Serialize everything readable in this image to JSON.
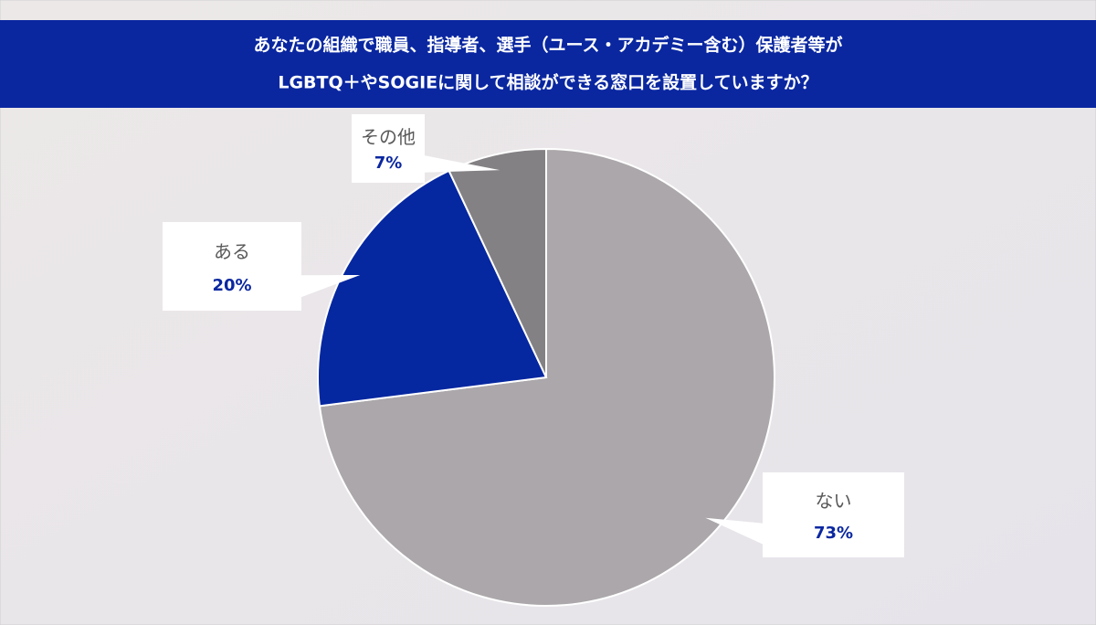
{
  "chart_data": {
    "type": "pie",
    "title": [
      "あなたの組織で職員、指導者、選手（ユース・アカデミー含む）保護者等が",
      "LGBTQ＋やSOGIEに関して相談ができる窓口を設置していますか？"
    ],
    "categories": [
      "ない",
      "ある",
      "その他"
    ],
    "values": [
      73,
      20,
      7
    ],
    "value_labels": [
      "73%",
      "20%",
      "7%"
    ],
    "colors": [
      "#aba7aa",
      "#0527a0",
      "#848184"
    ]
  }
}
